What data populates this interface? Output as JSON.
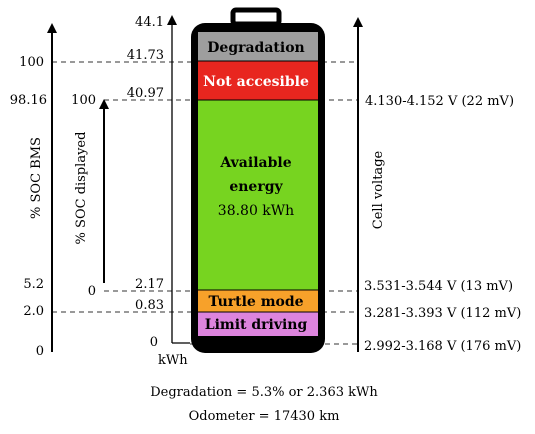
{
  "segments": {
    "degradation": {
      "label": "Degradation",
      "color": "#9e9e9e"
    },
    "not_accessible": {
      "label": "Not accesible",
      "color": "#e8261f"
    },
    "available": {
      "label_line1": "Available",
      "label_line2": "energy",
      "value": "38.80 kWh",
      "color": "#77d420"
    },
    "turtle": {
      "label": "Turtle mode",
      "color": "#f7a12a"
    },
    "limit": {
      "label": "Limit driving",
      "color": "#dd84dd"
    }
  },
  "kwh_axis": {
    "unit": "kWh",
    "ticks": [
      "44.1",
      "41.73",
      "40.97",
      "2.17",
      "0.83",
      "0"
    ]
  },
  "soc_bms": {
    "label": "% SOC BMS",
    "ticks": [
      "100",
      "98.16",
      "5.2",
      "2.0",
      "0"
    ]
  },
  "soc_displayed": {
    "label": "% SOC displayed",
    "ticks": [
      "100",
      "0"
    ]
  },
  "cell_voltage": {
    "label": "Cell voltage",
    "values": [
      "4.130-4.152 V (22 mV)",
      "3.531-3.544 V (13 mV)",
      "3.281-3.393 V (112 mV)",
      "2.992-3.168 V (176 mV)"
    ]
  },
  "footer": {
    "degradation": "Degradation = 5.3% or 2.363 kWh",
    "odometer": "Odometer = 17430 km"
  }
}
